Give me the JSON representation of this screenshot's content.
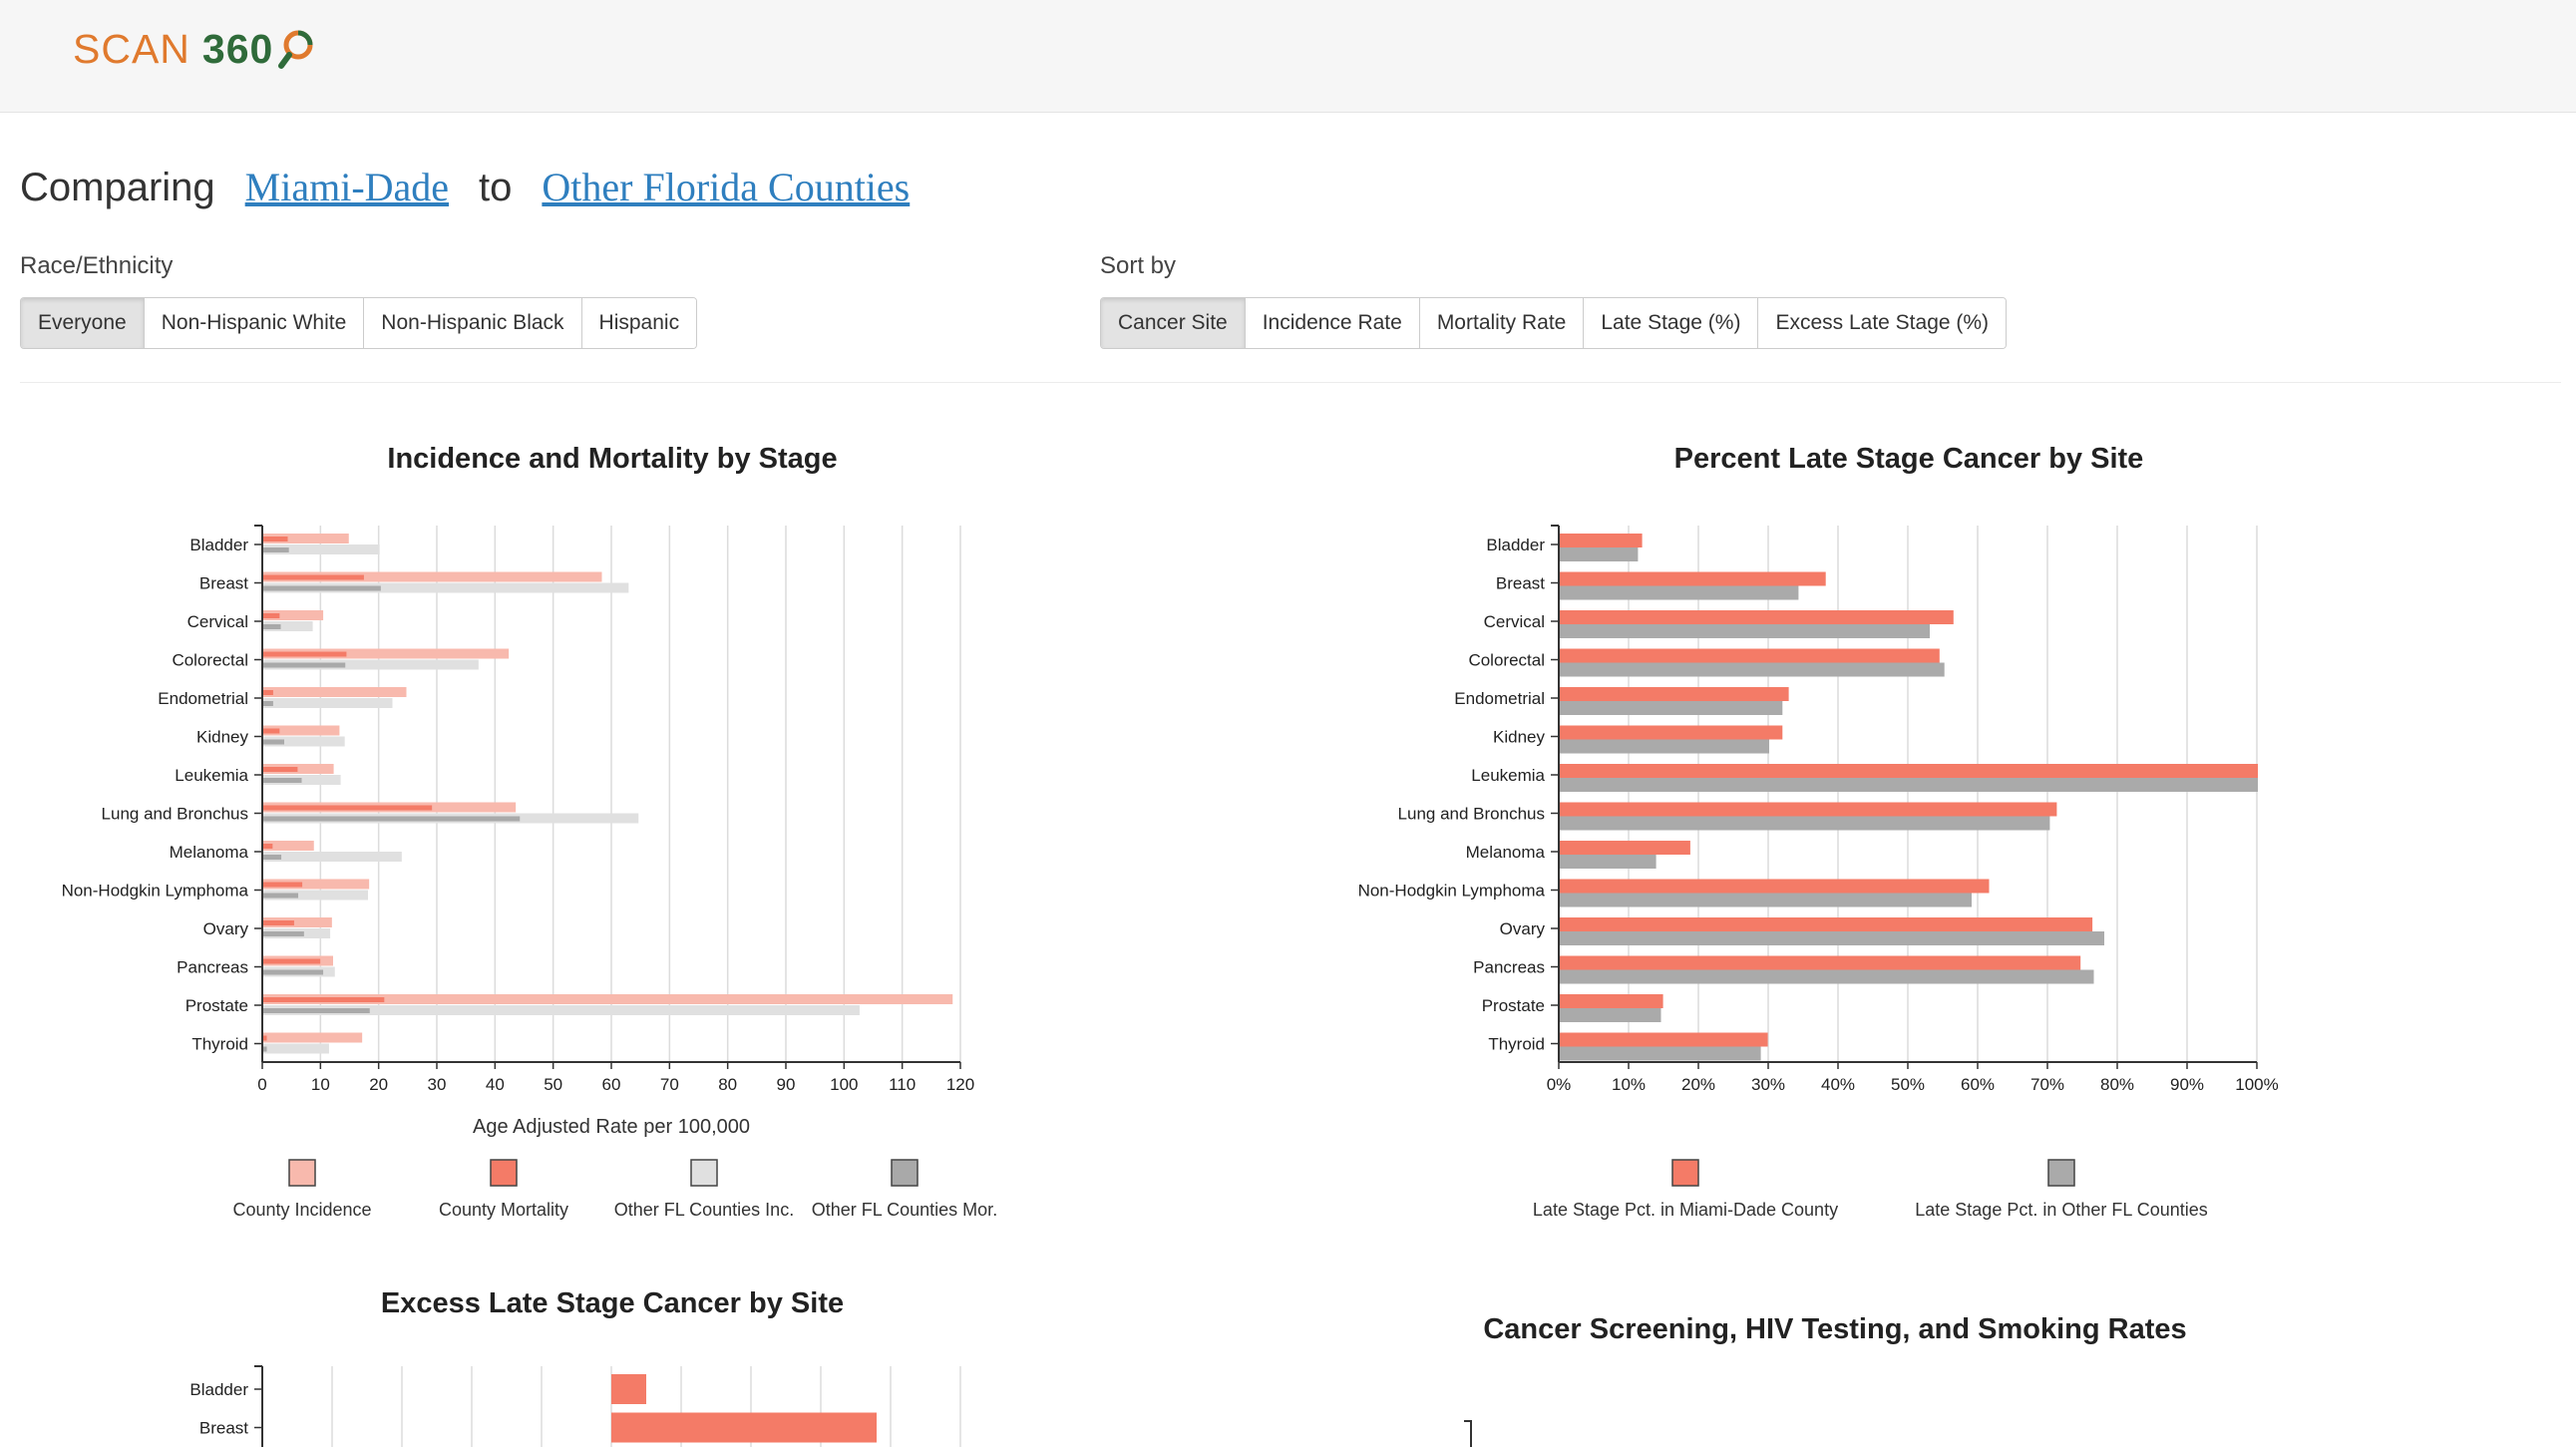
{
  "app": {
    "logo_text": "SCAN",
    "logo_number": "360"
  },
  "comparison": {
    "prefix": "Comparing",
    "county": "Miami-Dade",
    "connector": "to",
    "reference": "Other Florida Counties"
  },
  "race": {
    "label": "Race/Ethnicity",
    "options": [
      "Everyone",
      "Non-Hispanic White",
      "Non-Hispanic Black",
      "Hispanic"
    ],
    "selected": "Everyone"
  },
  "sort": {
    "label": "Sort by",
    "options": [
      "Cancer Site",
      "Incidence Rate",
      "Mortality Rate",
      "Late Stage (%)",
      "Excess Late Stage (%)"
    ],
    "selected": "Cancer Site"
  },
  "colors": {
    "county_incidence": "#f8b9ad",
    "county_mortality": "#f47b67",
    "fl_incidence": "#e0e0e0",
    "fl_mortality": "#a9a9a9",
    "late_county": "#f47b67",
    "late_fl": "#aaaaaa"
  },
  "chart_data": [
    {
      "type": "bar",
      "orientation": "horizontal",
      "title": "Incidence and Mortality by Stage",
      "xlabel": "Age Adjusted Rate per 100,000",
      "xlim": [
        0,
        120
      ],
      "xticks": [
        "0",
        "10",
        "20",
        "30",
        "40",
        "50",
        "60",
        "70",
        "80",
        "90",
        "100",
        "110",
        "120"
      ],
      "categories": [
        "Bladder",
        "Breast",
        "Cervical",
        "Colorectal",
        "Endometrial",
        "Kidney",
        "Leukemia",
        "Lung and Bronchus",
        "Melanoma",
        "Non-Hodgkin Lymphoma",
        "Ovary",
        "Pancreas",
        "Prostate",
        "Thyroid"
      ],
      "series": [
        {
          "name": "County Incidence",
          "values": [
            14.7,
            58.2,
            10.3,
            42.2,
            24.6,
            13.1,
            12.1,
            43.4,
            8.7,
            18.2,
            11.8,
            12.0,
            118.5,
            17.0
          ]
        },
        {
          "name": "County Mortality",
          "values": [
            4.2,
            17.3,
            2.8,
            14.3,
            1.7,
            2.8,
            5.9,
            29.0,
            1.6,
            6.7,
            5.3,
            9.8,
            20.8,
            0.6
          ]
        },
        {
          "name": "Other FL Counties Inc.",
          "values": [
            20.0,
            62.8,
            8.5,
            37.0,
            22.2,
            14.0,
            13.3,
            64.5,
            23.8,
            18.0,
            11.5,
            12.3,
            102.5,
            11.3
          ]
        },
        {
          "name": "Other FL Counties Mor.",
          "values": [
            4.4,
            20.2,
            3.0,
            14.1,
            1.7,
            3.6,
            6.6,
            44.1,
            3.1,
            6.0,
            7.0,
            10.3,
            18.3,
            0.6
          ]
        }
      ],
      "legend": [
        "County Incidence",
        "County Mortality",
        "Other FL Counties Inc.",
        "Other FL Counties Mor."
      ],
      "legend_position": "bottom"
    },
    {
      "type": "bar",
      "orientation": "horizontal",
      "title": "Percent Late Stage Cancer by Site",
      "xlim": [
        0,
        100
      ],
      "xticks": [
        "0%",
        "10%",
        "20%",
        "30%",
        "40%",
        "50%",
        "60%",
        "70%",
        "80%",
        "90%",
        "100%"
      ],
      "categories": [
        "Bladder",
        "Breast",
        "Cervical",
        "Colorectal",
        "Endometrial",
        "Kidney",
        "Leukemia",
        "Lung and Bronchus",
        "Melanoma",
        "Non-Hodgkin Lymphoma",
        "Ovary",
        "Pancreas",
        "Prostate",
        "Thyroid"
      ],
      "series": [
        {
          "name": "Late Stage Pct. in Miami-Dade County",
          "values": [
            11.8,
            38.1,
            56.4,
            54.4,
            32.8,
            31.9,
            100,
            71.2,
            18.7,
            61.5,
            76.3,
            74.6,
            14.8,
            29.8
          ]
        },
        {
          "name": "Late Stage Pct. in Other FL Counties",
          "values": [
            11.2,
            34.2,
            53.0,
            55.1,
            31.9,
            30.0,
            100,
            70.2,
            13.8,
            59.0,
            78.0,
            76.5,
            14.5,
            28.8
          ]
        }
      ],
      "legend": [
        "Late Stage Pct. in Miami-Dade County",
        "Late Stage Pct. in Other FL Counties"
      ],
      "legend_position": "bottom"
    },
    {
      "type": "bar",
      "orientation": "horizontal",
      "title": "Excess Late Stage Cancer by Site",
      "categories": [
        "Bladder",
        "Breast"
      ],
      "series": [
        {
          "values": [
            0.5,
            3.8
          ]
        }
      ]
    },
    {
      "type": "bar",
      "title": "Cancer Screening, HIV Testing, and Smoking Rates"
    }
  ]
}
